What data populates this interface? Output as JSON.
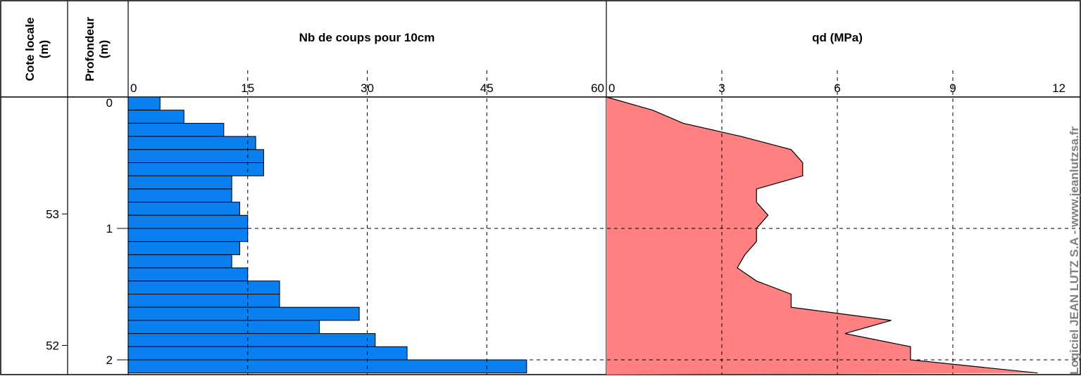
{
  "header": {
    "col_cote_line1": "Cote locale",
    "col_cote_line2": "(m)",
    "col_prof_line1": "Profondeur",
    "col_prof_line2": "(m)",
    "panel1_title": "Nb de coups pour 10cm",
    "panel2_title": "qd (MPa)"
  },
  "watermark": "Logiciel JEAN LUTZ S.A - www.jeanlutzsa.fr",
  "colors": {
    "bars": "#0a7ff0",
    "area": "#ff8080",
    "stroke": "#000000"
  },
  "chart_data": [
    {
      "type": "bar",
      "orientation": "horizontal",
      "title": "Nb de coups pour 10cm",
      "xlim": [
        0,
        60
      ],
      "x_ticks": [
        "0",
        "15",
        "30",
        "45",
        "60"
      ],
      "ylabel": "Profondeur (m)",
      "ylim": [
        0,
        2.1
      ],
      "y_ticks": [
        "0",
        "1",
        "2"
      ],
      "elevation_label": "Cote locale (m)",
      "elevation_ticks": [
        "53",
        "52"
      ],
      "grid": true,
      "depth_step": 0.1,
      "values": [
        4,
        7,
        12,
        16,
        17,
        17,
        13,
        13,
        14,
        15,
        15,
        14,
        13,
        15,
        19,
        19,
        29,
        24,
        31,
        35,
        50
      ]
    },
    {
      "type": "area",
      "title": "qd (MPa)",
      "xlim": [
        0,
        12
      ],
      "x_ticks": [
        "0",
        "3",
        "6",
        "9",
        "12"
      ],
      "ylim": [
        0,
        2.1
      ],
      "grid": true,
      "points": [
        {
          "depth": 0.0,
          "qd": 0.0
        },
        {
          "depth": 0.1,
          "qd": 1.2
        },
        {
          "depth": 0.2,
          "qd": 2.0
        },
        {
          "depth": 0.3,
          "qd": 3.5
        },
        {
          "depth": 0.4,
          "qd": 4.8
        },
        {
          "depth": 0.5,
          "qd": 5.1
        },
        {
          "depth": 0.6,
          "qd": 5.1
        },
        {
          "depth": 0.7,
          "qd": 3.9
        },
        {
          "depth": 0.8,
          "qd": 3.9
        },
        {
          "depth": 0.9,
          "qd": 4.2
        },
        {
          "depth": 1.0,
          "qd": 3.9
        },
        {
          "depth": 1.1,
          "qd": 3.9
        },
        {
          "depth": 1.2,
          "qd": 3.6
        },
        {
          "depth": 1.3,
          "qd": 3.4
        },
        {
          "depth": 1.4,
          "qd": 3.9
        },
        {
          "depth": 1.5,
          "qd": 4.8
        },
        {
          "depth": 1.6,
          "qd": 4.8
        },
        {
          "depth": 1.7,
          "qd": 7.4
        },
        {
          "depth": 1.8,
          "qd": 6.2
        },
        {
          "depth": 1.9,
          "qd": 7.9
        },
        {
          "depth": 2.0,
          "qd": 7.9
        },
        {
          "depth": 2.1,
          "qd": 11.2
        }
      ]
    }
  ]
}
